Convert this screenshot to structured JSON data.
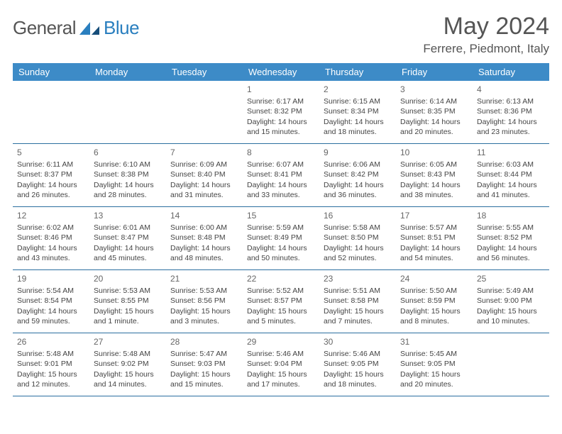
{
  "logo": {
    "general": "General",
    "blue": "Blue"
  },
  "title": {
    "month": "May 2024",
    "location": "Ferrere, Piedmont, Italy"
  },
  "colors": {
    "header_bg": "#3d8bc7",
    "header_text": "#ffffff",
    "week_border": "#2b6fa0",
    "body_text": "#444444",
    "title_text": "#555555",
    "logo_blue": "#2a7fbf",
    "logo_gray": "#555555"
  },
  "day_names": [
    "Sunday",
    "Monday",
    "Tuesday",
    "Wednesday",
    "Thursday",
    "Friday",
    "Saturday"
  ],
  "calendar": {
    "weeks": [
      [
        null,
        null,
        null,
        {
          "day": "1",
          "sunrise": "Sunrise: 6:17 AM",
          "sunset": "Sunset: 8:32 PM",
          "daylight": "Daylight: 14 hours and 15 minutes."
        },
        {
          "day": "2",
          "sunrise": "Sunrise: 6:15 AM",
          "sunset": "Sunset: 8:34 PM",
          "daylight": "Daylight: 14 hours and 18 minutes."
        },
        {
          "day": "3",
          "sunrise": "Sunrise: 6:14 AM",
          "sunset": "Sunset: 8:35 PM",
          "daylight": "Daylight: 14 hours and 20 minutes."
        },
        {
          "day": "4",
          "sunrise": "Sunrise: 6:13 AM",
          "sunset": "Sunset: 8:36 PM",
          "daylight": "Daylight: 14 hours and 23 minutes."
        }
      ],
      [
        {
          "day": "5",
          "sunrise": "Sunrise: 6:11 AM",
          "sunset": "Sunset: 8:37 PM",
          "daylight": "Daylight: 14 hours and 26 minutes."
        },
        {
          "day": "6",
          "sunrise": "Sunrise: 6:10 AM",
          "sunset": "Sunset: 8:38 PM",
          "daylight": "Daylight: 14 hours and 28 minutes."
        },
        {
          "day": "7",
          "sunrise": "Sunrise: 6:09 AM",
          "sunset": "Sunset: 8:40 PM",
          "daylight": "Daylight: 14 hours and 31 minutes."
        },
        {
          "day": "8",
          "sunrise": "Sunrise: 6:07 AM",
          "sunset": "Sunset: 8:41 PM",
          "daylight": "Daylight: 14 hours and 33 minutes."
        },
        {
          "day": "9",
          "sunrise": "Sunrise: 6:06 AM",
          "sunset": "Sunset: 8:42 PM",
          "daylight": "Daylight: 14 hours and 36 minutes."
        },
        {
          "day": "10",
          "sunrise": "Sunrise: 6:05 AM",
          "sunset": "Sunset: 8:43 PM",
          "daylight": "Daylight: 14 hours and 38 minutes."
        },
        {
          "day": "11",
          "sunrise": "Sunrise: 6:03 AM",
          "sunset": "Sunset: 8:44 PM",
          "daylight": "Daylight: 14 hours and 41 minutes."
        }
      ],
      [
        {
          "day": "12",
          "sunrise": "Sunrise: 6:02 AM",
          "sunset": "Sunset: 8:46 PM",
          "daylight": "Daylight: 14 hours and 43 minutes."
        },
        {
          "day": "13",
          "sunrise": "Sunrise: 6:01 AM",
          "sunset": "Sunset: 8:47 PM",
          "daylight": "Daylight: 14 hours and 45 minutes."
        },
        {
          "day": "14",
          "sunrise": "Sunrise: 6:00 AM",
          "sunset": "Sunset: 8:48 PM",
          "daylight": "Daylight: 14 hours and 48 minutes."
        },
        {
          "day": "15",
          "sunrise": "Sunrise: 5:59 AM",
          "sunset": "Sunset: 8:49 PM",
          "daylight": "Daylight: 14 hours and 50 minutes."
        },
        {
          "day": "16",
          "sunrise": "Sunrise: 5:58 AM",
          "sunset": "Sunset: 8:50 PM",
          "daylight": "Daylight: 14 hours and 52 minutes."
        },
        {
          "day": "17",
          "sunrise": "Sunrise: 5:57 AM",
          "sunset": "Sunset: 8:51 PM",
          "daylight": "Daylight: 14 hours and 54 minutes."
        },
        {
          "day": "18",
          "sunrise": "Sunrise: 5:55 AM",
          "sunset": "Sunset: 8:52 PM",
          "daylight": "Daylight: 14 hours and 56 minutes."
        }
      ],
      [
        {
          "day": "19",
          "sunrise": "Sunrise: 5:54 AM",
          "sunset": "Sunset: 8:54 PM",
          "daylight": "Daylight: 14 hours and 59 minutes."
        },
        {
          "day": "20",
          "sunrise": "Sunrise: 5:53 AM",
          "sunset": "Sunset: 8:55 PM",
          "daylight": "Daylight: 15 hours and 1 minute."
        },
        {
          "day": "21",
          "sunrise": "Sunrise: 5:53 AM",
          "sunset": "Sunset: 8:56 PM",
          "daylight": "Daylight: 15 hours and 3 minutes."
        },
        {
          "day": "22",
          "sunrise": "Sunrise: 5:52 AM",
          "sunset": "Sunset: 8:57 PM",
          "daylight": "Daylight: 15 hours and 5 minutes."
        },
        {
          "day": "23",
          "sunrise": "Sunrise: 5:51 AM",
          "sunset": "Sunset: 8:58 PM",
          "daylight": "Daylight: 15 hours and 7 minutes."
        },
        {
          "day": "24",
          "sunrise": "Sunrise: 5:50 AM",
          "sunset": "Sunset: 8:59 PM",
          "daylight": "Daylight: 15 hours and 8 minutes."
        },
        {
          "day": "25",
          "sunrise": "Sunrise: 5:49 AM",
          "sunset": "Sunset: 9:00 PM",
          "daylight": "Daylight: 15 hours and 10 minutes."
        }
      ],
      [
        {
          "day": "26",
          "sunrise": "Sunrise: 5:48 AM",
          "sunset": "Sunset: 9:01 PM",
          "daylight": "Daylight: 15 hours and 12 minutes."
        },
        {
          "day": "27",
          "sunrise": "Sunrise: 5:48 AM",
          "sunset": "Sunset: 9:02 PM",
          "daylight": "Daylight: 15 hours and 14 minutes."
        },
        {
          "day": "28",
          "sunrise": "Sunrise: 5:47 AM",
          "sunset": "Sunset: 9:03 PM",
          "daylight": "Daylight: 15 hours and 15 minutes."
        },
        {
          "day": "29",
          "sunrise": "Sunrise: 5:46 AM",
          "sunset": "Sunset: 9:04 PM",
          "daylight": "Daylight: 15 hours and 17 minutes."
        },
        {
          "day": "30",
          "sunrise": "Sunrise: 5:46 AM",
          "sunset": "Sunset: 9:05 PM",
          "daylight": "Daylight: 15 hours and 18 minutes."
        },
        {
          "day": "31",
          "sunrise": "Sunrise: 5:45 AM",
          "sunset": "Sunset: 9:05 PM",
          "daylight": "Daylight: 15 hours and 20 minutes."
        },
        null
      ]
    ]
  }
}
